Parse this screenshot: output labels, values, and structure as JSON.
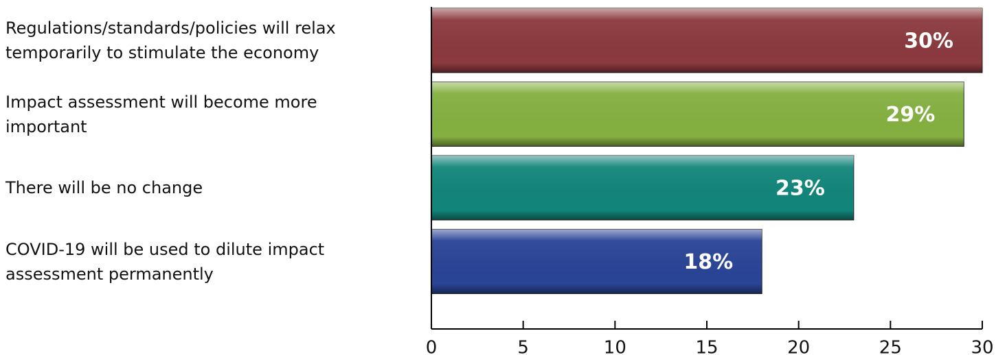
{
  "chart_data": {
    "type": "bar",
    "orientation": "horizontal",
    "categories": [
      "Regulations/standards/policies will relax temporarily to stimulate the economy",
      "Impact assessment will become more important",
      "There will be no change",
      "COVID-19 will be used to dilute impact assessment permanently"
    ],
    "values": [
      30,
      29,
      23,
      18
    ],
    "value_labels": [
      "30%",
      "29%",
      "23%",
      "18%"
    ],
    "colors": [
      "#8b3a3e",
      "#84b040",
      "#12857a",
      "#2a4496"
    ],
    "xlim": [
      0,
      30
    ],
    "xticks": [
      0,
      5,
      10,
      15,
      20,
      25,
      30
    ]
  }
}
